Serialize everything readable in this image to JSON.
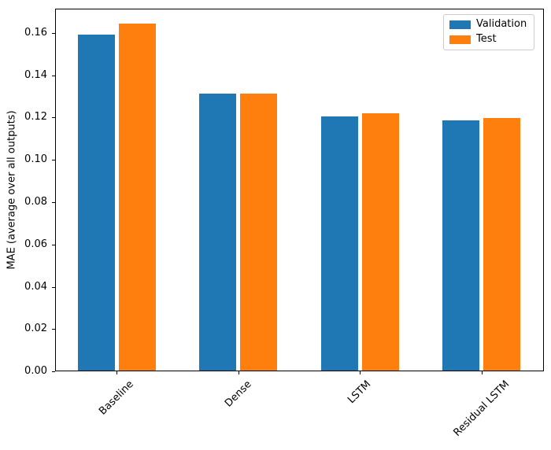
{
  "chart_data": {
    "type": "bar",
    "categories": [
      "Baseline",
      "Dense",
      "LSTM",
      "Residual LSTM"
    ],
    "series": [
      {
        "name": "Validation",
        "color": "#1f77b4",
        "values": [
          0.159,
          0.131,
          0.12,
          0.1183
        ]
      },
      {
        "name": "Test",
        "color": "#ff7f0e",
        "values": [
          0.164,
          0.131,
          0.1215,
          0.1193
        ]
      }
    ],
    "title": "",
    "xlabel": "",
    "ylabel": "MAE (average over all outputs)",
    "yticks": [
      "0.00",
      "0.02",
      "0.04",
      "0.06",
      "0.08",
      "0.10",
      "0.12",
      "0.14",
      "0.16"
    ],
    "ylim": [
      0,
      0.1715
    ],
    "xtick_rotation_deg": 45,
    "grid": false,
    "legend_position": "upper right",
    "background_color": "#ffffff",
    "spine_color": "#000000"
  }
}
